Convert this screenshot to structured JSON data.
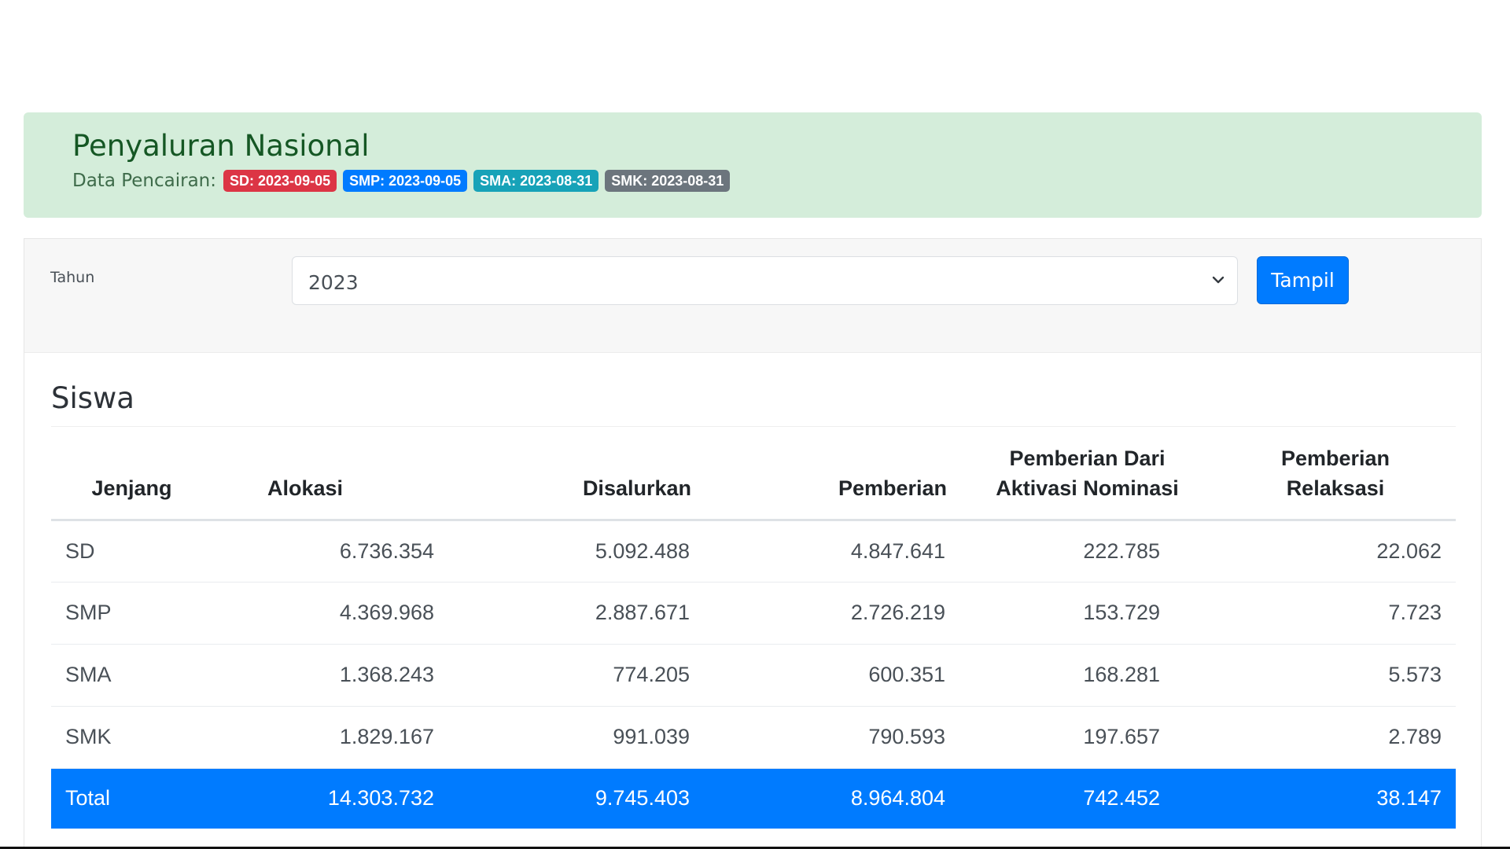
{
  "header": {
    "title": "Penyaluran Nasional",
    "data_label": "Data Pencairan:",
    "badges": [
      {
        "text": "SD: 2023-09-05",
        "color": "#dc3545"
      },
      {
        "text": "SMP: 2023-09-05",
        "color": "#007bff"
      },
      {
        "text": "SMA: 2023-08-31",
        "color": "#17a2b8"
      },
      {
        "text": "SMK: 2023-08-31",
        "color": "#6c757d"
      }
    ]
  },
  "filter": {
    "year_label": "Tahun",
    "year_value": "2023",
    "show_button": "Tampil"
  },
  "section": {
    "title": "Siswa"
  },
  "table": {
    "headers": [
      "Jenjang",
      "Alokasi",
      "Disalurkan",
      "Pemberian",
      "Pemberian Dari\nAktivasi Nominasi",
      "Pemberian\nRelaksasi"
    ],
    "rows": [
      [
        "SD",
        "6.736.354",
        "5.092.488",
        "4.847.641",
        "222.785",
        "22.062"
      ],
      [
        "SMP",
        "4.369.968",
        "2.887.671",
        "2.726.219",
        "153.729",
        "7.723"
      ],
      [
        "SMA",
        "1.368.243",
        "774.205",
        "600.351",
        "168.281",
        "5.573"
      ],
      [
        "SMK",
        "1.829.167",
        "991.039",
        "790.593",
        "197.657",
        "2.789"
      ]
    ],
    "total": [
      "Total",
      "14.303.732",
      "9.745.403",
      "8.964.804",
      "742.452",
      "38.147"
    ]
  },
  "colors": {
    "header_bg": "#d4edda",
    "primary": "#007bff"
  }
}
